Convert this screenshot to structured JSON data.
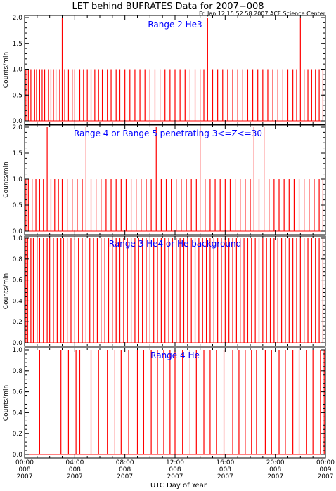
{
  "title": "LET behind BUFRATES Data for 2007−008",
  "timestamp": "Fri Jan 12 15:52:58 2007 ACE Science Center",
  "xlabel": "UTC Day of Year",
  "colors": {
    "data": "#ff0000",
    "panel_label": "#0000ff",
    "axes": "#000000"
  },
  "chart_data": [
    {
      "type": "line",
      "title": "Range 2 He3",
      "ylabel": "Counts/min",
      "ylim": [
        0.0,
        2.0
      ],
      "yticks": [
        "0.0",
        "0.5",
        "1.0",
        "1.5",
        "2.0"
      ],
      "xlim": [
        0,
        24
      ],
      "series": [
        {
          "values": [
            [
              0.1,
              1
            ],
            [
              0.3,
              1
            ],
            [
              0.5,
              1
            ],
            [
              0.8,
              1
            ],
            [
              0.95,
              1
            ],
            [
              1.2,
              1
            ],
            [
              1.4,
              1
            ],
            [
              1.6,
              1
            ],
            [
              1.9,
              1
            ],
            [
              2.1,
              1
            ],
            [
              2.3,
              1
            ],
            [
              2.5,
              1
            ],
            [
              2.8,
              1
            ],
            [
              3.0,
              2
            ],
            [
              3.2,
              1
            ],
            [
              3.5,
              1
            ],
            [
              3.8,
              1
            ],
            [
              4.0,
              1
            ],
            [
              4.4,
              1
            ],
            [
              4.7,
              1
            ],
            [
              5.0,
              1
            ],
            [
              5.3,
              1
            ],
            [
              5.6,
              1
            ],
            [
              5.9,
              1
            ],
            [
              6.2,
              1
            ],
            [
              6.6,
              1
            ],
            [
              6.9,
              1
            ],
            [
              7.3,
              1
            ],
            [
              7.6,
              1
            ],
            [
              8.0,
              1
            ],
            [
              8.4,
              1
            ],
            [
              8.8,
              1
            ],
            [
              9.2,
              1
            ],
            [
              9.6,
              1
            ],
            [
              10.0,
              1
            ],
            [
              10.4,
              1
            ],
            [
              10.8,
              1
            ],
            [
              11.2,
              1
            ],
            [
              11.6,
              1
            ],
            [
              12.0,
              1
            ],
            [
              12.4,
              1
            ],
            [
              12.8,
              1
            ],
            [
              13.2,
              1
            ],
            [
              13.6,
              1
            ],
            [
              14.0,
              1
            ],
            [
              14.3,
              1
            ],
            [
              14.6,
              2
            ],
            [
              15.0,
              1
            ],
            [
              15.4,
              1
            ],
            [
              15.8,
              1
            ],
            [
              16.2,
              1
            ],
            [
              16.6,
              1
            ],
            [
              17.0,
              1
            ],
            [
              17.4,
              1
            ],
            [
              17.8,
              1
            ],
            [
              18.2,
              1
            ],
            [
              18.6,
              1
            ],
            [
              19.0,
              1
            ],
            [
              19.4,
              1
            ],
            [
              19.8,
              1
            ],
            [
              20.2,
              1
            ],
            [
              20.6,
              1
            ],
            [
              21.0,
              1
            ],
            [
              21.4,
              1
            ],
            [
              21.7,
              1
            ],
            [
              22.0,
              2
            ],
            [
              22.3,
              1
            ],
            [
              22.6,
              1
            ],
            [
              22.9,
              1
            ],
            [
              23.2,
              1
            ],
            [
              23.5,
              1
            ],
            [
              23.8,
              1
            ]
          ]
        }
      ]
    },
    {
      "type": "line",
      "title": "Range 4 or Range 5 penetrating 3<=Z<=30",
      "ylabel": "Counts/min",
      "ylim": [
        0.0,
        2.0
      ],
      "yticks": [
        "0.0",
        "0.5",
        "1.0",
        "1.5",
        "2.0"
      ],
      "xlim": [
        0,
        24
      ],
      "series": [
        {
          "values": [
            [
              0.1,
              1
            ],
            [
              0.3,
              1
            ],
            [
              0.6,
              1
            ],
            [
              0.9,
              1
            ],
            [
              1.2,
              1
            ],
            [
              1.5,
              1
            ],
            [
              1.8,
              2
            ],
            [
              2.1,
              1
            ],
            [
              2.4,
              1
            ],
            [
              2.7,
              1
            ],
            [
              3.0,
              1
            ],
            [
              3.4,
              1
            ],
            [
              3.8,
              1
            ],
            [
              4.2,
              1
            ],
            [
              4.6,
              1
            ],
            [
              4.9,
              2
            ],
            [
              5.3,
              1
            ],
            [
              5.7,
              1
            ],
            [
              6.1,
              1
            ],
            [
              6.5,
              1
            ],
            [
              6.9,
              1
            ],
            [
              7.3,
              1
            ],
            [
              7.7,
              1
            ],
            [
              8.1,
              1
            ],
            [
              8.5,
              1
            ],
            [
              8.9,
              1
            ],
            [
              9.3,
              1
            ],
            [
              9.7,
              1
            ],
            [
              10.1,
              1
            ],
            [
              10.5,
              2
            ],
            [
              10.9,
              1
            ],
            [
              11.3,
              1
            ],
            [
              11.7,
              1
            ],
            [
              12.1,
              1
            ],
            [
              12.5,
              1
            ],
            [
              12.9,
              1
            ],
            [
              13.3,
              1
            ],
            [
              13.7,
              1
            ],
            [
              14.0,
              2
            ],
            [
              14.4,
              1
            ],
            [
              14.8,
              1
            ],
            [
              15.2,
              1
            ],
            [
              15.6,
              1
            ],
            [
              16.0,
              1
            ],
            [
              16.4,
              1
            ],
            [
              16.8,
              1
            ],
            [
              17.2,
              1
            ],
            [
              17.6,
              1
            ],
            [
              18.0,
              1
            ],
            [
              18.3,
              2
            ],
            [
              18.7,
              1
            ],
            [
              19.1,
              2
            ],
            [
              19.5,
              1
            ],
            [
              19.9,
              1
            ],
            [
              20.3,
              1
            ],
            [
              20.7,
              1
            ],
            [
              21.1,
              1
            ],
            [
              21.5,
              1
            ],
            [
              21.9,
              1
            ],
            [
              22.3,
              1
            ],
            [
              22.7,
              1
            ],
            [
              23.1,
              1
            ],
            [
              23.5,
              1
            ],
            [
              23.8,
              1
            ]
          ]
        }
      ]
    },
    {
      "type": "line",
      "title": "Range 3 He4 or He background",
      "ylabel": "Counts/min",
      "ylim": [
        0.0,
        1.0
      ],
      "yticks": [
        "0.0",
        "0.2",
        "0.4",
        "0.6",
        "0.8",
        "1.0"
      ],
      "xlim": [
        0,
        24
      ],
      "series": [
        {
          "values": [
            [
              0.1,
              1
            ],
            [
              0.25,
              1
            ],
            [
              0.5,
              1
            ],
            [
              0.7,
              1
            ],
            [
              1.0,
              1
            ],
            [
              1.2,
              1
            ],
            [
              1.5,
              1
            ],
            [
              1.8,
              1
            ],
            [
              2.0,
              1
            ],
            [
              2.3,
              1
            ],
            [
              2.6,
              1
            ],
            [
              2.9,
              1
            ],
            [
              3.1,
              1
            ],
            [
              3.4,
              1
            ],
            [
              3.7,
              1
            ],
            [
              4.0,
              1
            ],
            [
              4.3,
              1
            ],
            [
              4.6,
              1
            ],
            [
              4.9,
              1
            ],
            [
              5.2,
              1
            ],
            [
              5.5,
              1
            ],
            [
              5.8,
              1
            ],
            [
              6.1,
              1
            ],
            [
              6.4,
              1
            ],
            [
              6.7,
              1
            ],
            [
              7.0,
              1
            ],
            [
              7.3,
              1
            ],
            [
              7.6,
              1
            ],
            [
              7.9,
              1
            ],
            [
              8.2,
              1
            ],
            [
              8.5,
              1
            ],
            [
              8.8,
              1
            ],
            [
              9.1,
              1
            ],
            [
              9.4,
              1
            ],
            [
              9.7,
              1
            ],
            [
              10.0,
              1
            ],
            [
              10.3,
              1
            ],
            [
              10.6,
              1
            ],
            [
              10.9,
              1
            ],
            [
              11.2,
              1
            ],
            [
              11.5,
              1
            ],
            [
              11.8,
              1
            ],
            [
              12.1,
              1
            ],
            [
              12.4,
              1
            ],
            [
              12.7,
              1
            ],
            [
              13.0,
              1
            ],
            [
              13.3,
              1
            ],
            [
              13.6,
              1
            ],
            [
              13.9,
              1
            ],
            [
              14.2,
              1
            ],
            [
              14.5,
              1
            ],
            [
              14.8,
              1
            ],
            [
              15.1,
              1
            ],
            [
              15.4,
              1
            ],
            [
              15.7,
              1
            ],
            [
              16.0,
              1
            ],
            [
              16.3,
              1
            ],
            [
              16.6,
              1
            ],
            [
              16.9,
              1
            ],
            [
              17.2,
              1
            ],
            [
              17.5,
              1
            ],
            [
              17.8,
              1
            ],
            [
              18.1,
              1
            ],
            [
              18.4,
              1
            ],
            [
              18.7,
              1
            ],
            [
              19.0,
              1
            ],
            [
              19.3,
              1
            ],
            [
              19.6,
              1
            ],
            [
              19.9,
              1
            ],
            [
              20.2,
              1
            ],
            [
              20.5,
              1
            ],
            [
              20.8,
              1
            ],
            [
              21.1,
              1
            ],
            [
              21.4,
              1
            ],
            [
              21.7,
              1
            ],
            [
              22.0,
              1
            ],
            [
              22.3,
              1
            ],
            [
              22.6,
              1
            ],
            [
              22.9,
              1
            ],
            [
              23.2,
              1
            ],
            [
              23.5,
              1
            ],
            [
              23.8,
              1
            ]
          ]
        }
      ]
    },
    {
      "type": "line",
      "title": "Range 4 He",
      "ylabel": "Counts/min",
      "ylim": [
        0.0,
        1.0
      ],
      "yticks": [
        "0.0",
        "0.2",
        "0.4",
        "0.6",
        "0.8",
        "1.0"
      ],
      "xlim": [
        0,
        24
      ],
      "series": [
        {
          "values": [
            [
              1.2,
              1
            ],
            [
              2.9,
              1
            ],
            [
              3.5,
              1
            ],
            [
              4.1,
              1
            ],
            [
              4.4,
              1
            ],
            [
              5.3,
              1
            ],
            [
              5.9,
              1
            ],
            [
              6.6,
              1
            ],
            [
              7.2,
              1
            ],
            [
              7.7,
              1
            ],
            [
              8.3,
              1
            ],
            [
              9.0,
              1
            ],
            [
              9.5,
              1
            ],
            [
              10.1,
              1
            ],
            [
              10.6,
              1
            ],
            [
              11.1,
              1
            ],
            [
              11.6,
              1
            ],
            [
              12.0,
              1
            ],
            [
              12.6,
              1
            ],
            [
              13.2,
              1
            ],
            [
              13.7,
              1
            ],
            [
              14.3,
              1
            ],
            [
              14.8,
              1
            ],
            [
              15.3,
              1
            ],
            [
              15.9,
              1
            ],
            [
              16.6,
              1
            ],
            [
              17.1,
              1
            ],
            [
              17.6,
              1
            ],
            [
              18.1,
              1
            ],
            [
              18.5,
              1
            ],
            [
              19.2,
              1
            ],
            [
              19.7,
              1
            ],
            [
              20.3,
              1
            ],
            [
              20.8,
              1
            ],
            [
              21.4,
              1
            ],
            [
              21.9,
              1
            ],
            [
              22.5,
              1
            ],
            [
              23.0,
              1
            ],
            [
              23.6,
              1
            ],
            [
              23.9,
              1
            ]
          ]
        }
      ]
    }
  ],
  "xticks": [
    {
      "hour": 0,
      "lines": [
        "00:00",
        "008",
        "2007"
      ]
    },
    {
      "hour": 4,
      "lines": [
        "04:00",
        "008",
        "2007"
      ]
    },
    {
      "hour": 8,
      "lines": [
        "08:00",
        "008",
        "2007"
      ]
    },
    {
      "hour": 12,
      "lines": [
        "12:00",
        "008",
        "2007"
      ]
    },
    {
      "hour": 16,
      "lines": [
        "16:00",
        "008",
        "2007"
      ]
    },
    {
      "hour": 20,
      "lines": [
        "20:00",
        "008",
        "2007"
      ]
    },
    {
      "hour": 24,
      "lines": [
        "00:00",
        "009",
        "2007"
      ]
    }
  ]
}
